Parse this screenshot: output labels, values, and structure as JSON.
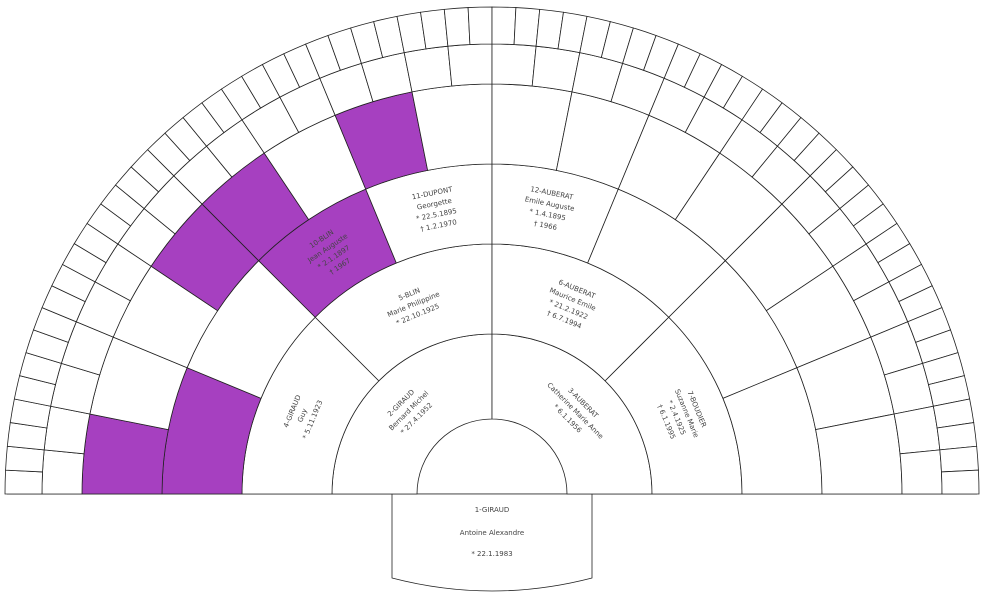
{
  "root": {
    "label": "1-GIRAUD",
    "given": "Antoine Alexandre",
    "dates": [
      "* 22.1.1983"
    ]
  },
  "ancestors": [
    {
      "label": "2-GIRAUD",
      "given": "Bernard Michel",
      "dates": [
        "* 27.4.1952"
      ]
    },
    {
      "label": "3-AUBERAT",
      "given": "Catherine Marie Anne",
      "dates": [
        "* 6.1.1956"
      ]
    },
    {
      "label": "4-GIRAUD",
      "given": "Guy",
      "dates": [
        "* 5.11.1923"
      ]
    },
    {
      "label": "5-BLIN",
      "given": "Marie Philippine",
      "dates": [
        "* 22.10.1925"
      ]
    },
    {
      "label": "6-AUBERAT",
      "given": "Maurice Emile",
      "dates": [
        "* 21.2.1922",
        "† 6.7.1994"
      ]
    },
    {
      "label": "7-BOUDIER",
      "given": "Suzanne Marie",
      "dates": [
        "* 2.4.1925",
        "† 6.1.1995"
      ]
    },
    {
      "label": "10-BLIN",
      "given": "Jean Auguste",
      "dates": [
        "* 2.1.1897",
        "† 1967"
      ]
    },
    {
      "label": "11-DUPONT",
      "given": "Georgette",
      "dates": [
        "* 22.5.1895",
        "† 1.2.1970"
      ]
    },
    {
      "label": "12-AUBERAT",
      "given": "Emile Auguste",
      "dates": [
        "* 1.4.1895",
        "† 1966"
      ]
    }
  ]
}
